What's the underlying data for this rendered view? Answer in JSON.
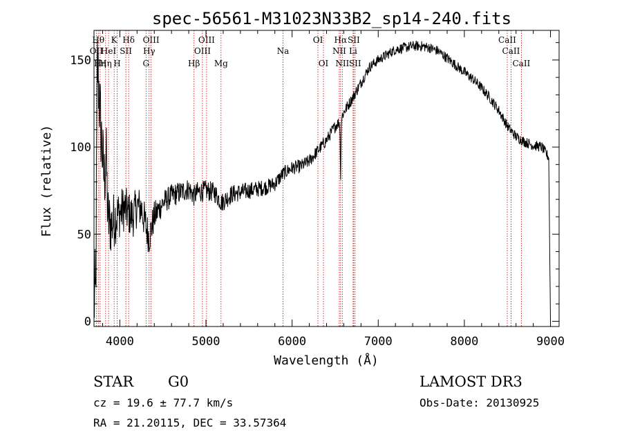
{
  "chart_data": {
    "type": "line",
    "title": "spec-56561-M31023N33B2_sp14-240.fits",
    "xlabel": "Wavelength (Å)",
    "ylabel": "Flux (relative)",
    "xlim": [
      3700,
      9100
    ],
    "ylim": [
      -3,
      167
    ],
    "x_ticks": [
      4000,
      5000,
      6000,
      7000,
      8000,
      9000
    ],
    "x_tick_labels": [
      "4000",
      "5000",
      "6000",
      "7000",
      "8000",
      "9000"
    ],
    "y_ticks": [
      0,
      50,
      100,
      150
    ],
    "y_tick_labels": [
      "0",
      "50",
      "100",
      "150"
    ],
    "series": [
      {
        "name": "spectrum",
        "anchors": [
          [
            3700,
            10
          ],
          [
            3720,
            55
          ],
          [
            3740,
            150
          ],
          [
            3760,
            130
          ],
          [
            3780,
            110
          ],
          [
            3800,
            95
          ],
          [
            3830,
            70
          ],
          [
            3860,
            58
          ],
          [
            3900,
            55
          ],
          [
            3950,
            60
          ],
          [
            4000,
            62
          ],
          [
            4050,
            65
          ],
          [
            4100,
            62
          ],
          [
            4150,
            60
          ],
          [
            4200,
            66
          ],
          [
            4250,
            65
          ],
          [
            4300,
            55
          ],
          [
            4340,
            48
          ],
          [
            4400,
            60
          ],
          [
            4500,
            68
          ],
          [
            4600,
            72
          ],
          [
            4700,
            74
          ],
          [
            4800,
            76
          ],
          [
            4861,
            72
          ],
          [
            4900,
            74
          ],
          [
            5000,
            75
          ],
          [
            5100,
            74
          ],
          [
            5180,
            68
          ],
          [
            5300,
            73
          ],
          [
            5500,
            75
          ],
          [
            5700,
            77
          ],
          [
            5800,
            79
          ],
          [
            5900,
            85
          ],
          [
            6000,
            88
          ],
          [
            6100,
            89
          ],
          [
            6200,
            92
          ],
          [
            6300,
            98
          ],
          [
            6400,
            104
          ],
          [
            6500,
            112
          ],
          [
            6560,
            115
          ],
          [
            6600,
            120
          ],
          [
            6700,
            128
          ],
          [
            6800,
            137
          ],
          [
            6900,
            146
          ],
          [
            7000,
            150
          ],
          [
            7100,
            153
          ],
          [
            7200,
            156
          ],
          [
            7300,
            157
          ],
          [
            7400,
            158
          ],
          [
            7500,
            158
          ],
          [
            7600,
            157
          ],
          [
            7700,
            155
          ],
          [
            7800,
            151
          ],
          [
            7900,
            147
          ],
          [
            8000,
            143
          ],
          [
            8100,
            139
          ],
          [
            8200,
            134
          ],
          [
            8300,
            128
          ],
          [
            8400,
            121
          ],
          [
            8500,
            112
          ],
          [
            8600,
            106
          ],
          [
            8700,
            103
          ],
          [
            8800,
            101
          ],
          [
            8900,
            100
          ],
          [
            8980,
            94
          ],
          [
            9000,
            0
          ]
        ],
        "features": [
          {
            "center": 6563,
            "width": 4,
            "depth": -32
          },
          {
            "center": 3840,
            "width": 10,
            "depth": 30
          },
          {
            "center": 3720,
            "width": 8,
            "depth": -40
          }
        ],
        "noise_profile": [
          [
            3700,
            30
          ],
          [
            3800,
            22
          ],
          [
            3900,
            18
          ],
          [
            4000,
            14
          ],
          [
            4300,
            11
          ],
          [
            4500,
            7
          ],
          [
            5500,
            5
          ],
          [
            6000,
            4
          ],
          [
            7000,
            3
          ],
          [
            9000,
            3
          ]
        ]
      }
    ],
    "emission_lines": [
      {
        "wavelength": 3727,
        "label": "OII",
        "row": 2
      },
      {
        "wavelength": 3750,
        "label": "Hθ",
        "row": 1
      },
      {
        "wavelength": 3771,
        "label": "Hη",
        "row": 3
      },
      {
        "wavelength": 3835,
        "label": "Hη",
        "row": 3
      },
      {
        "wavelength": 3869,
        "label": "HeI",
        "row": 2
      },
      {
        "wavelength": 3934,
        "label": "K",
        "row": 1
      },
      {
        "wavelength": 3969,
        "label": "H",
        "row": 3
      },
      {
        "wavelength": 4070,
        "label": "SII",
        "row": 2
      },
      {
        "wavelength": 4102,
        "label": "Hδ",
        "row": 1
      },
      {
        "wavelength": 4304,
        "label": "G",
        "row": 3
      },
      {
        "wavelength": 4340,
        "label": "Hγ",
        "row": 2
      },
      {
        "wavelength": 4363,
        "label": "OIII",
        "row": 1
      },
      {
        "wavelength": 4861,
        "label": "Hβ",
        "row": 3
      },
      {
        "wavelength": 4959,
        "label": "OIII",
        "row": 2
      },
      {
        "wavelength": 5007,
        "label": "OIII",
        "row": 1
      },
      {
        "wavelength": 5175,
        "label": "Mg",
        "row": 3
      },
      {
        "wavelength": 5894,
        "label": "Na",
        "row": 2
      },
      {
        "wavelength": 6300,
        "label": "OI",
        "row": 1
      },
      {
        "wavelength": 6364,
        "label": "OI",
        "row": 3
      },
      {
        "wavelength": 6548,
        "label": "NII",
        "row": 2
      },
      {
        "wavelength": 6563,
        "label": "Hα",
        "row": 1
      },
      {
        "wavelength": 6583,
        "label": "NII",
        "row": 3
      },
      {
        "wavelength": 6708,
        "label": "Li",
        "row": 2
      },
      {
        "wavelength": 6716,
        "label": "SII",
        "row": 1
      },
      {
        "wavelength": 6731,
        "label": "SII",
        "row": 3
      },
      {
        "wavelength": 8498,
        "label": "CaII",
        "row": 1
      },
      {
        "wavelength": 8542,
        "label": "CaII",
        "row": 2
      },
      {
        "wavelength": 8662,
        "label": "CaII",
        "row": 3
      }
    ],
    "line_color": "#000000",
    "marker_color": "#cc0000",
    "grid": false
  },
  "info": {
    "class_label": "STAR",
    "subclass": "G0",
    "survey": "LAMOST DR3",
    "cz": "cz = 19.6 ± 77.7 km/s",
    "obs_date": "Obs-Date: 20130925",
    "coords": "RA =  21.20115, DEC =  33.57364"
  }
}
